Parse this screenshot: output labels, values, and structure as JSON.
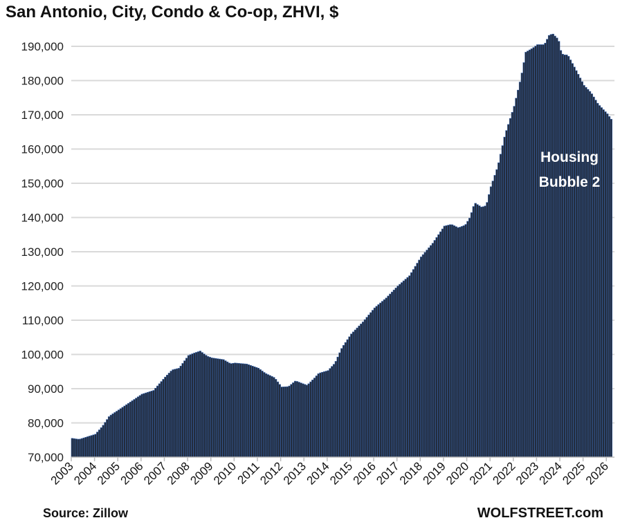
{
  "chart_data": {
    "type": "bar",
    "title": "San Antonio, City, Condo & Co-op, ZHVI, $",
    "xlabel": "",
    "ylabel": "",
    "frequency": "monthly",
    "x_range": [
      "2003-01",
      "2026-03"
    ],
    "ylim": [
      70000,
      195000
    ],
    "y_ticks": [
      70000,
      80000,
      90000,
      100000,
      110000,
      120000,
      130000,
      140000,
      150000,
      160000,
      170000,
      180000,
      190000
    ],
    "y_tick_labels": [
      "70,000",
      "80,000",
      "90,000",
      "100,000",
      "110,000",
      "120,000",
      "130,000",
      "140,000",
      "150,000",
      "160,000",
      "170,000",
      "180,000",
      "190,000"
    ],
    "x_tick_labels": [
      "2003",
      "2004",
      "2005",
      "2006",
      "2007",
      "2008",
      "2009",
      "2010",
      "2011",
      "2012",
      "2013",
      "2014",
      "2015",
      "2016",
      "2017",
      "2018",
      "2019",
      "2020",
      "2021",
      "2022",
      "2023",
      "2024",
      "2025",
      "2026"
    ],
    "grid": true,
    "anchor_points": {
      "x": [
        2003.0,
        2003.3,
        2004.0,
        2004.3,
        2004.6,
        2005.0,
        2006.0,
        2006.5,
        2007.0,
        2007.3,
        2007.6,
        2008.0,
        2008.2,
        2008.5,
        2008.8,
        2009.0,
        2009.5,
        2009.8,
        2010.0,
        2010.5,
        2011.0,
        2011.3,
        2011.7,
        2012.0,
        2012.3,
        2012.6,
        2012.9,
        2013.1,
        2013.4,
        2013.6,
        2014.0,
        2014.3,
        2014.6,
        2015.0,
        2015.5,
        2016.0,
        2016.5,
        2017.0,
        2017.5,
        2018.0,
        2018.5,
        2019.0,
        2019.3,
        2019.6,
        2019.9,
        2020.1,
        2020.3,
        2020.6,
        2020.8,
        2021.0,
        2021.3,
        2021.6,
        2022.0,
        2022.3,
        2022.5,
        2022.8,
        2023.0,
        2023.3,
        2023.5,
        2023.65,
        2023.9,
        2024.0,
        2024.1,
        2024.3,
        2024.5,
        2024.7,
        2025.0,
        2025.3,
        2025.6,
        2026.0,
        2026.2
      ],
      "y": [
        75500,
        75200,
        76700,
        79000,
        82000,
        83800,
        88400,
        89500,
        93400,
        95500,
        96000,
        99700,
        100300,
        101000,
        99500,
        99000,
        98500,
        97300,
        97500,
        97200,
        96000,
        94500,
        93200,
        90500,
        90600,
        92300,
        91500,
        91000,
        93000,
        94500,
        95300,
        97500,
        102000,
        106000,
        109500,
        113600,
        116500,
        120000,
        123000,
        128500,
        132500,
        137500,
        138000,
        137000,
        137800,
        140000,
        144300,
        143000,
        143500,
        149000,
        155000,
        164000,
        172500,
        181000,
        188300,
        189500,
        190500,
        190500,
        193200,
        193700,
        192000,
        188800,
        187500,
        187500,
        185000,
        182500,
        178600,
        176500,
        173200,
        170300,
        168400
      ]
    },
    "annotations": [
      "Housing",
      "Bubble 2"
    ],
    "colors": {
      "bar_fill": "#222b3b",
      "bar_edge": "#3a66ad",
      "grid": "#d9d9d9"
    }
  },
  "footer": {
    "source": "Source: Zillow",
    "brand": "WOLFSTREET.com"
  }
}
